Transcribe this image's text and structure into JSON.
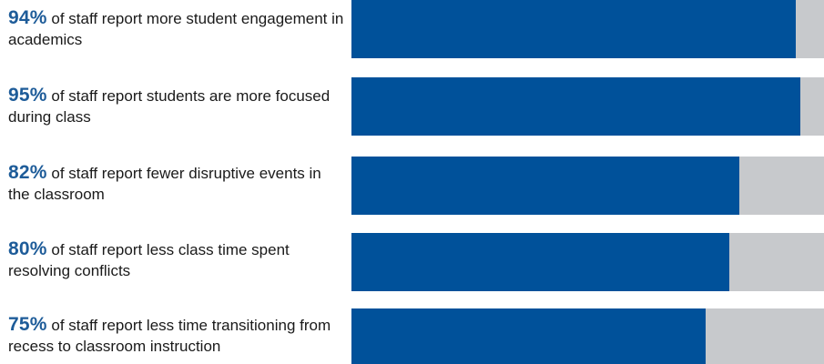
{
  "chart_data": {
    "type": "bar",
    "orientation": "horizontal",
    "stacked_to": 100,
    "unit": "%",
    "colors": {
      "value_bar": "#00519a",
      "remainder_bar": "#c7c9cc",
      "percent_text": "#1e5c99"
    },
    "items": [
      {
        "percent_text": "94%",
        "value": 94,
        "text": " of staff report more student engagement in academics"
      },
      {
        "percent_text": "95%",
        "value": 95,
        "text": " of staff report students are more focused during class"
      },
      {
        "percent_text": "82%",
        "value": 82,
        "text": " of staff report fewer disruptive events in the classroom"
      },
      {
        "percent_text": "80%",
        "value": 80,
        "text": " of staff report less class time spent resolving conflicts"
      },
      {
        "percent_text": "75%",
        "value": 75,
        "text": " of staff report less time transitioning from recess to classroom instruction"
      }
    ]
  }
}
